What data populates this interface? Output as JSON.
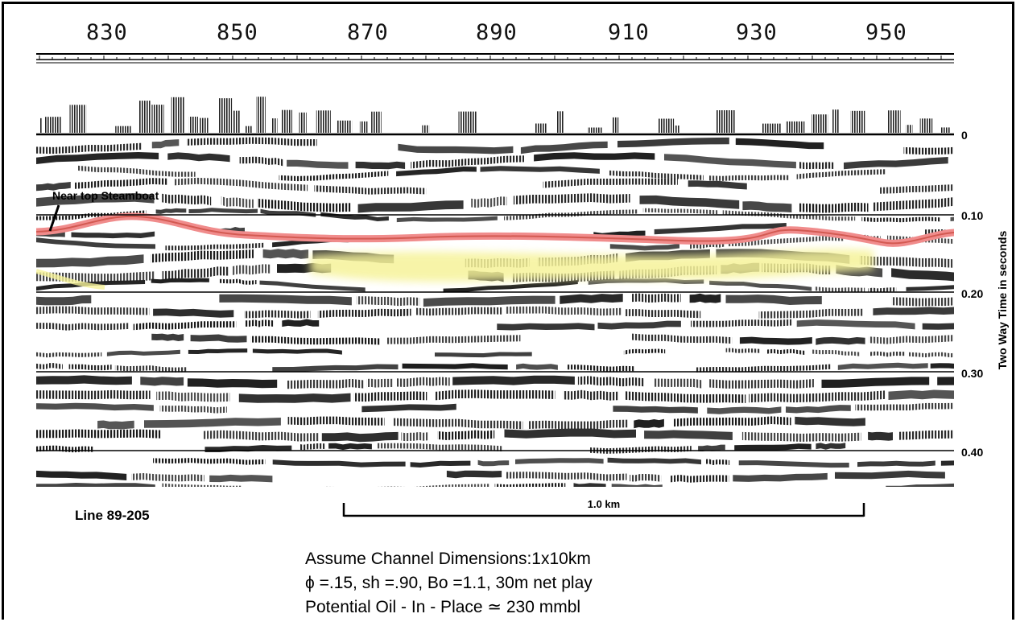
{
  "cdp_labels": [
    "830",
    "850",
    "870",
    "890",
    "910",
    "930",
    "950"
  ],
  "time_axis": {
    "title": "Two Way Time in seconds",
    "ticks": [
      "0",
      "0.10",
      "0.20",
      "0.30",
      "0.40"
    ]
  },
  "horizon_label": "Near top Steamboat",
  "line_label": "Line 89-205",
  "scale_bar_label": "1.0 km",
  "notes": {
    "line1": "Assume Channel Dimensions:1x10km",
    "line2": "ϕ =.15, sh =.90, Bo =1.1, 30m net play",
    "line3": "Potential Oil - In - Place ≃ 230 mmbl"
  },
  "colors": {
    "horizon_pick": "#f08c8c",
    "channel_highlight": "#f6f39a",
    "seismic_ink": "#1a1a1a"
  }
}
